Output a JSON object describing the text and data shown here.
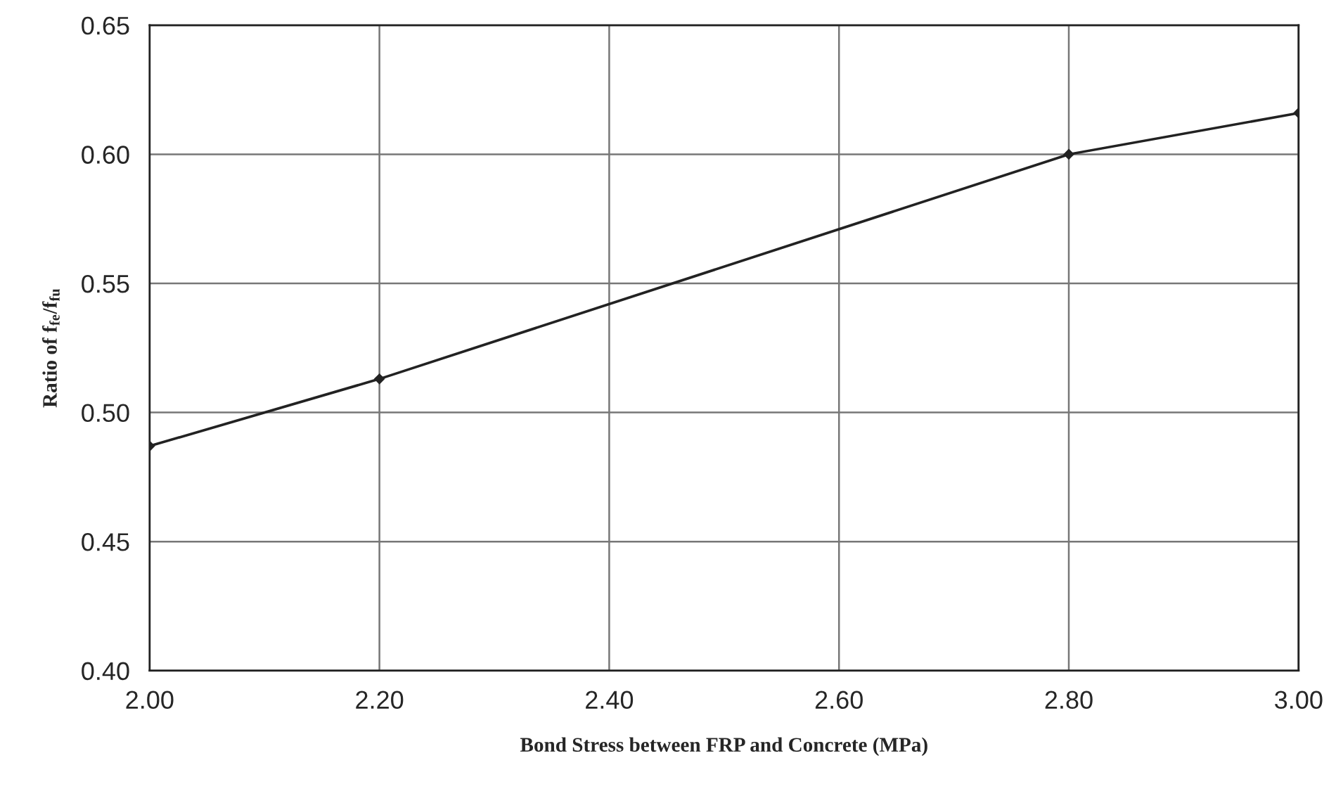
{
  "chart_data": {
    "type": "line",
    "xlabel": "Bond Stress between FRP and Concrete (MPa)",
    "ylabel": "Ratio of f$_{fe}$/f$_{fu}$",
    "x": [
      2.0,
      2.2,
      2.8,
      3.0
    ],
    "series": [
      {
        "color": "#222222",
        "values": [
          0.487,
          0.513,
          0.6,
          0.616
        ]
      }
    ],
    "xlim": [
      2.0,
      3.0
    ],
    "xticks": [
      {
        "value": 2.0,
        "label": "2.00"
      },
      {
        "value": 2.2,
        "label": "2.20"
      },
      {
        "value": 2.4,
        "label": "2.40"
      },
      {
        "value": 2.6,
        "label": "2.60"
      },
      {
        "value": 2.8,
        "label": "2.80"
      },
      {
        "value": 3.0,
        "label": "3.00"
      }
    ],
    "ylim": [
      0.4,
      0.65
    ],
    "yticks": [
      {
        "value": 0.4,
        "label": "0.40"
      },
      {
        "value": 0.45,
        "label": "0.45"
      },
      {
        "value": 0.5,
        "label": "0.50"
      },
      {
        "value": 0.55,
        "label": "0.55"
      },
      {
        "value": 0.6,
        "label": "0.60"
      },
      {
        "value": 0.65,
        "label": "0.65"
      }
    ],
    "grid": true,
    "marker": "diamond",
    "line_style": "solid",
    "legend": false
  }
}
